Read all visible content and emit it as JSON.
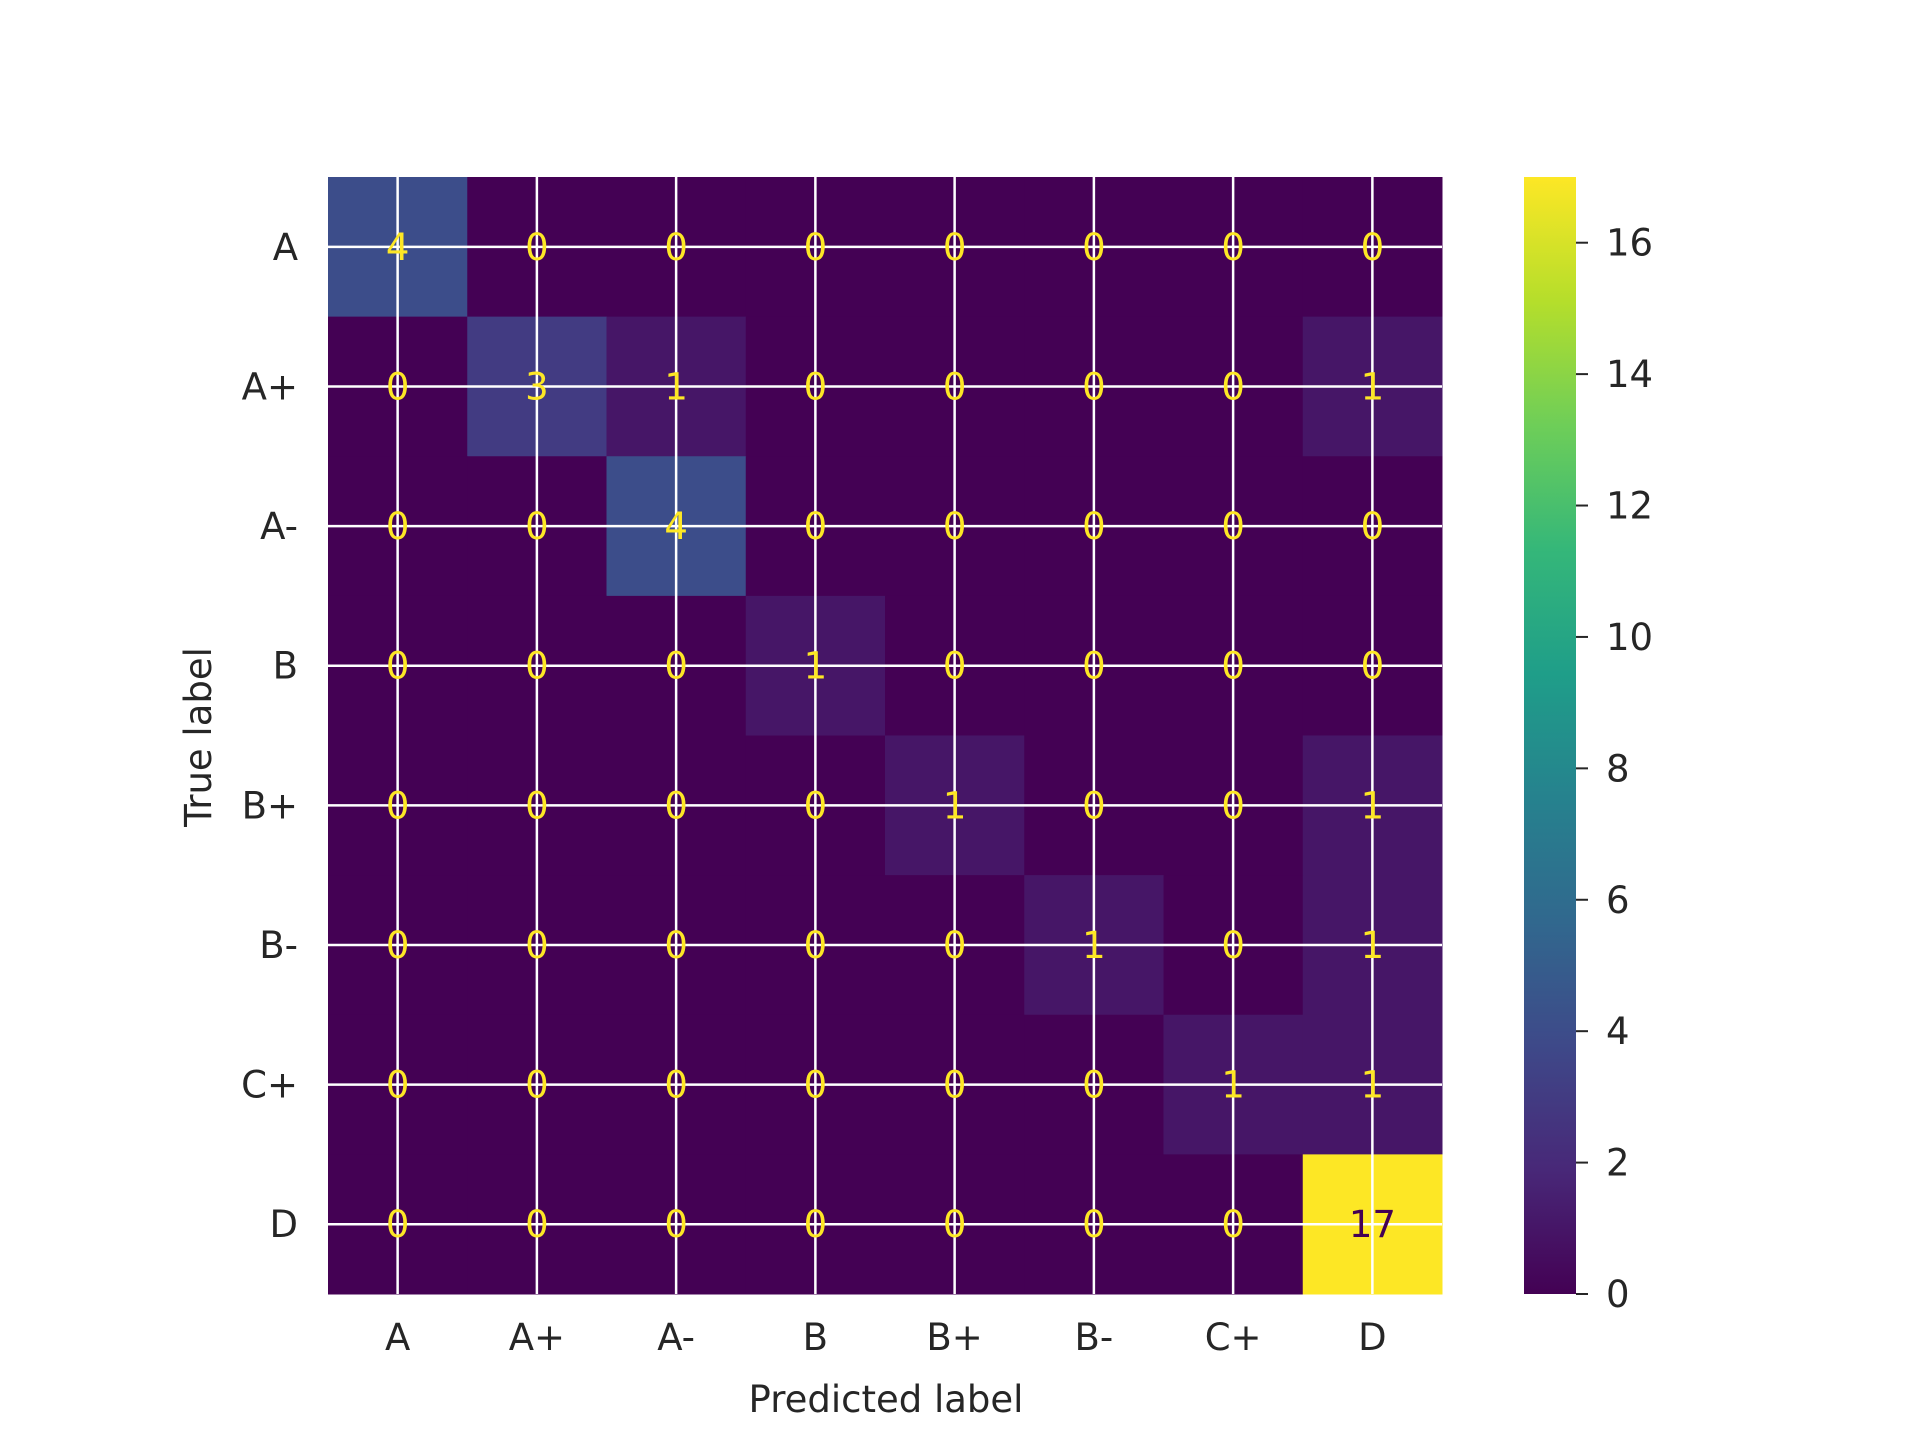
{
  "chart_data": {
    "type": "heatmap",
    "title": "",
    "xlabel": "Predicted label",
    "ylabel": "True label",
    "x_categories": [
      "A",
      "A+",
      "A-",
      "B",
      "B+",
      "B-",
      "C+",
      "D"
    ],
    "y_categories": [
      "A",
      "A+",
      "A-",
      "B",
      "B+",
      "B-",
      "C+",
      "D"
    ],
    "values": [
      [
        4,
        0,
        0,
        0,
        0,
        0,
        0,
        0
      ],
      [
        0,
        3,
        1,
        0,
        0,
        0,
        0,
        1
      ],
      [
        0,
        0,
        4,
        0,
        0,
        0,
        0,
        0
      ],
      [
        0,
        0,
        0,
        1,
        0,
        0,
        0,
        0
      ],
      [
        0,
        0,
        0,
        0,
        1,
        0,
        0,
        1
      ],
      [
        0,
        0,
        0,
        0,
        0,
        1,
        0,
        1
      ],
      [
        0,
        0,
        0,
        0,
        0,
        0,
        1,
        1
      ],
      [
        0,
        0,
        0,
        0,
        0,
        0,
        0,
        17
      ]
    ],
    "colormap": "viridis",
    "grid": true,
    "colorbar": {
      "range": [
        0,
        17
      ],
      "ticks": [
        0,
        2,
        4,
        6,
        8,
        10,
        12,
        14,
        16
      ]
    },
    "colors": {
      "grid": "#ffffff",
      "text_on_dark": "#fde725",
      "text_on_light": "#440154",
      "axis_text": "#262626"
    }
  }
}
